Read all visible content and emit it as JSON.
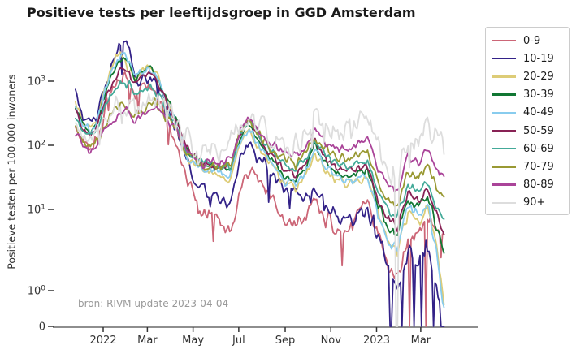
{
  "chart_data": {
    "type": "line",
    "title": "Positieve tests per leeftijdsgroep in GGD Amsterdam",
    "xlabel": "",
    "ylabel": "Positieve testen per 100.000 inwoners",
    "caption": "bron: RIVM update 2023-04-04",
    "yscale": "symlog",
    "ylim": [
      0,
      5000
    ],
    "grid": false,
    "legend_position": "right-outside",
    "background_color": "#ffffff",
    "spine_color": "#8e8e8e",
    "tick_color": "#333333",
    "caption_color": "#999999",
    "x_start_date": "2021-11-25",
    "x_end_date": "2023-04-04",
    "x_ticks": [
      {
        "label": "2022",
        "day": 37
      },
      {
        "label": "Mar",
        "day": 96
      },
      {
        "label": "May",
        "day": 157
      },
      {
        "label": "Jul",
        "day": 218
      },
      {
        "label": "Sep",
        "day": 280
      },
      {
        "label": "Nov",
        "day": 341
      },
      {
        "label": "2023",
        "day": 402
      },
      {
        "label": "Mar",
        "day": 461
      }
    ],
    "y_ticks": [
      {
        "base": "10",
        "sup": "3",
        "value": 1000
      },
      {
        "base": "10",
        "sup": "2",
        "value": 100
      },
      {
        "base": "10",
        "sup": "1",
        "value": 10
      },
      {
        "base": "10",
        "sup": "0",
        "value": 1
      },
      {
        "base": "0",
        "sup": "",
        "value": 0
      }
    ],
    "anchor_days": [
      0,
      10,
      20,
      30,
      40,
      50,
      58,
      64,
      72,
      79,
      88,
      96,
      103,
      112,
      122,
      134,
      148,
      162,
      176,
      192,
      207,
      220,
      232,
      246,
      262,
      278,
      294,
      308,
      320,
      334,
      348,
      362,
      376,
      390,
      404,
      417,
      430,
      444,
      458,
      470,
      482,
      493
    ],
    "series": [
      {
        "name": "0-9",
        "color": "#CC6677",
        "noise_level": 0.14,
        "zero_dip_days": [
          446,
          468
        ],
        "values": [
          230,
          120,
          95,
          130,
          350,
          800,
          1200,
          1300,
          1000,
          650,
          750,
          800,
          780,
          500,
          260,
          110,
          35,
          12,
          8,
          7,
          5,
          22,
          42,
          28,
          14,
          8,
          6,
          9,
          13,
          8,
          6,
          5,
          9,
          11,
          6,
          2,
          1.5,
          4,
          5,
          7,
          6,
          4
        ]
      },
      {
        "name": "10-19",
        "color": "#332288",
        "noise_level": 0.12,
        "zero_dip_days": [
          421,
          436,
          452,
          462,
          478,
          488,
          491
        ],
        "values": [
          600,
          280,
          210,
          300,
          800,
          1800,
          3200,
          4300,
          3200,
          1200,
          950,
          1050,
          1100,
          800,
          420,
          190,
          60,
          26,
          18,
          15,
          11,
          55,
          105,
          65,
          38,
          22,
          17,
          16,
          20,
          13,
          9,
          7,
          9,
          10,
          5,
          2,
          1,
          3,
          2,
          4,
          1,
          0
        ]
      },
      {
        "name": "20-29",
        "color": "#DDCC77",
        "noise_level": 0.09,
        "zero_dip_days": [],
        "values": [
          480,
          230,
          175,
          260,
          800,
          2000,
          2600,
          2300,
          1500,
          1100,
          1400,
          1650,
          1600,
          1000,
          500,
          230,
          70,
          45,
          38,
          34,
          28,
          110,
          180,
          85,
          48,
          26,
          21,
          33,
          75,
          42,
          28,
          24,
          27,
          30,
          10,
          4,
          3,
          9,
          7,
          11,
          4,
          0.5
        ]
      },
      {
        "name": "30-39",
        "color": "#117733",
        "noise_level": 0.08,
        "zero_dip_days": [],
        "values": [
          420,
          200,
          160,
          230,
          650,
          1400,
          2000,
          2300,
          1900,
          1050,
          1350,
          1750,
          1650,
          1050,
          520,
          260,
          85,
          55,
          48,
          45,
          40,
          140,
          220,
          105,
          58,
          33,
          28,
          48,
          100,
          56,
          38,
          33,
          38,
          42,
          12,
          6,
          5,
          14,
          11,
          17,
          6,
          3
        ]
      },
      {
        "name": "40-49",
        "color": "#88CCEE",
        "noise_level": 0.09,
        "zero_dip_days": [],
        "values": [
          430,
          210,
          165,
          240,
          700,
          1600,
          2400,
          2700,
          2200,
          1200,
          1300,
          1550,
          1450,
          900,
          450,
          230,
          72,
          48,
          42,
          38,
          33,
          120,
          195,
          90,
          52,
          28,
          24,
          40,
          90,
          48,
          33,
          28,
          31,
          34,
          9,
          4,
          3.5,
          11,
          9,
          13,
          3,
          0.4
        ]
      },
      {
        "name": "50-59",
        "color": "#882255",
        "noise_level": 0.08,
        "zero_dip_days": [],
        "values": [
          350,
          180,
          145,
          210,
          520,
          950,
          1400,
          1650,
          1450,
          900,
          1100,
          1350,
          1280,
          850,
          460,
          260,
          95,
          60,
          52,
          50,
          45,
          160,
          240,
          125,
          70,
          42,
          36,
          56,
          115,
          65,
          45,
          40,
          45,
          48,
          15,
          8,
          6,
          18,
          14,
          21,
          9,
          5
        ]
      },
      {
        "name": "60-69",
        "color": "#44AA99",
        "noise_level": 0.08,
        "zero_dip_days": [],
        "values": [
          300,
          160,
          130,
          175,
          400,
          650,
          850,
          950,
          870,
          560,
          660,
          800,
          760,
          560,
          330,
          210,
          85,
          58,
          52,
          50,
          46,
          170,
          250,
          135,
          80,
          52,
          43,
          65,
          125,
          75,
          52,
          47,
          52,
          56,
          19,
          10,
          8,
          24,
          19,
          28,
          11,
          7
        ]
      },
      {
        "name": "70-79",
        "color": "#999933",
        "noise_level": 0.1,
        "zero_dip_days": [],
        "values": [
          180,
          110,
          92,
          120,
          230,
          310,
          380,
          430,
          400,
          290,
          340,
          430,
          460,
          390,
          270,
          190,
          85,
          52,
          46,
          48,
          50,
          165,
          240,
          145,
          92,
          62,
          52,
          76,
          140,
          90,
          66,
          62,
          72,
          82,
          26,
          15,
          12,
          38,
          32,
          52,
          24,
          17
        ]
      },
      {
        "name": "80-89",
        "color": "#AA4499",
        "noise_level": 0.09,
        "zero_dip_days": [],
        "values": [
          160,
          100,
          85,
          112,
          190,
          250,
          310,
          360,
          340,
          255,
          305,
          385,
          415,
          355,
          250,
          180,
          88,
          56,
          50,
          55,
          60,
          185,
          265,
          165,
          105,
          78,
          68,
          96,
          170,
          115,
          92,
          88,
          105,
          125,
          42,
          26,
          20,
          65,
          55,
          92,
          45,
          33
        ]
      },
      {
        "name": "90+",
        "color": "#DDDDDD",
        "noise_level": 0.24,
        "zero_dip_days": [
          429
        ],
        "values": [
          200,
          130,
          112,
          140,
          230,
          310,
          390,
          450,
          420,
          330,
          390,
          480,
          520,
          450,
          330,
          260,
          130,
          88,
          78,
          88,
          100,
          240,
          320,
          210,
          145,
          115,
          105,
          155,
          245,
          185,
          155,
          165,
          215,
          270,
          90,
          40,
          28,
          140,
          130,
          230,
          145,
          110
        ]
      }
    ]
  }
}
